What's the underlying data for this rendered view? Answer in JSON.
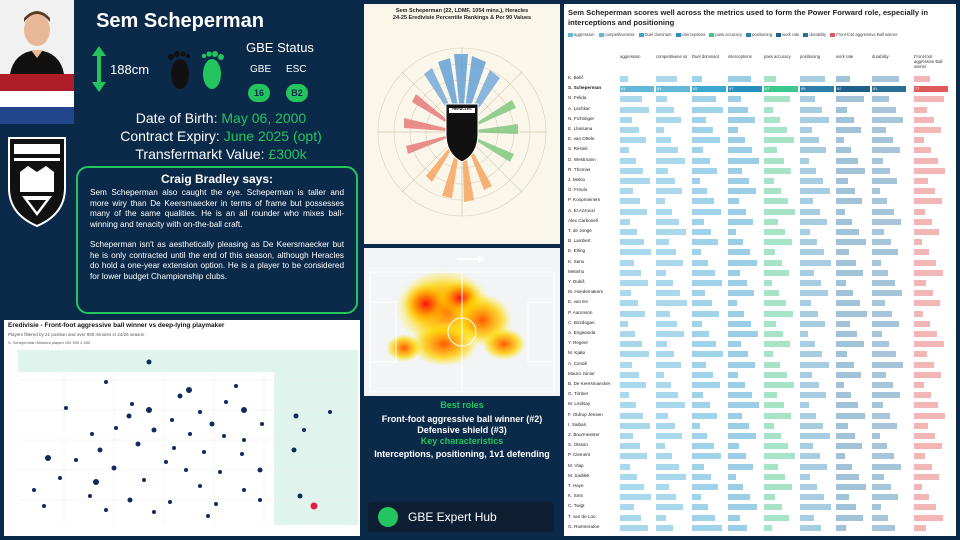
{
  "player": {
    "name": "Sem Scheperman",
    "height": "188cm",
    "status_title": "GBE Status",
    "gbe_label": "GBE",
    "esc_label": "ESC",
    "gbe_value": "16",
    "esc_value": "B2",
    "dob_label": "Date of Birth:",
    "dob_value": "May 06, 2000",
    "contract_label": "Contract Expiry:",
    "contract_value": "June 2025 (opt)",
    "value_label": "Transfermarkt Value:",
    "value_value": "£300k"
  },
  "club_logo_text": "HERACLES",
  "says": {
    "title": "Craig Bradley says:",
    "p1": "Sem Scheperman also caught the eye. Scheperman is taller and more wiry than De Keersmaecker in terms of frame but possesses many of the same qualities. He is an all rounder who mixes ball-winning and tenacity with on-the-ball craft.",
    "p2": "Scheperman isn't as aesthetically pleasing as De Keersmaecker but he is only contracted until the end of this season, although Heracles do hold a one-year extension option. He is a player to be considered for lower budget Championship clubs."
  },
  "scatter": {
    "title": "Eredivisie - Front-foot aggressive ball winner vs deep-lying playmaker",
    "subtitle": "Players filtered by 21 position and over 900 minutes in 24/25 season",
    "legend": "S. Scheperman    Minutes played   100  900  2,000"
  },
  "radar": {
    "title": "Sem Scheperman (22, LDMF, 1054 mins.), Heracles",
    "subtitle": "24-25 Eredivisie Percentile Rankings & Per 90 Values",
    "center_text": "HERACLES"
  },
  "roles": {
    "best_roles_title": "Best roles",
    "role1": "Front-foot aggressive ball winner (#2)",
    "role2": "Defensive shield (#3)",
    "key_title": "Key characteristics",
    "key_text": "Interceptions, positioning, 1v1 defending"
  },
  "hub": {
    "label": "GBE Expert Hub"
  },
  "table": {
    "title": "Sem Scheperman scores well across the metrics used to form the Power Forward role, especially in interceptions and positioning",
    "legend": [
      "aggression",
      "competitiveness",
      "Duel dominant",
      "interceptions",
      "pass accuracy",
      "positioning",
      "work rate",
      "durability",
      "Front-foot aggressive Ball winner"
    ],
    "legend_colors": [
      "#63b8d8",
      "#63b8d8",
      "#3ea7cf",
      "#2a8fbd",
      "#3ec78c",
      "#2b7ea8",
      "#1f5f8a",
      "#2b6f97",
      "#e05a5a"
    ],
    "columns": [
      "aggression",
      "competitivene ss",
      "Duel dominant",
      "interceptions",
      "pass accuracy",
      "positioning",
      "work rate",
      "durability",
      "Front-foot aggressive Ball winner"
    ],
    "highlight_row": "S. Scheperman",
    "highlight_values": [
      "81",
      "81",
      "92",
      "97",
      "67",
      "95",
      "92",
      "61",
      "77"
    ],
    "players": [
      "K. Belič",
      "S. Scheperman",
      "N. Felida",
      "A. Lachkar",
      "N. Fichtinger",
      "E. Llansana",
      "E. van Ottele",
      "S. Resink",
      "D. Westmann",
      "R. Thomas",
      "J. Mokio",
      "G. Freulo",
      "P. Koopmeiners",
      "A. El Azzouzi",
      "Alex Carbonell",
      "T. de Jonge",
      "B. Lambert",
      "E. Elting",
      "K. Sano",
      "Metinho",
      "Y. Dukiš",
      "M. Hoedemakers",
      "E. van Ee",
      "P. Aaronson",
      "C. Bozdogan",
      "A. Engwanda",
      "Y. Regeer",
      "M. Kjølø",
      "A. Condé",
      "Mauro Júnior",
      "B. De Keersmaecker",
      "G. Timber",
      "M. Lindsay",
      "F. Oldrup Jensen",
      "I. Saibari",
      "Z. Bourmeester",
      "S. Olsson",
      "P. Clement",
      "M. Vlap",
      "M. Sadiłek",
      "T. Haye",
      "K. Smit",
      "C. Twigt",
      "T. van de Loo",
      "G. Roemeratoe"
    ]
  }
}
